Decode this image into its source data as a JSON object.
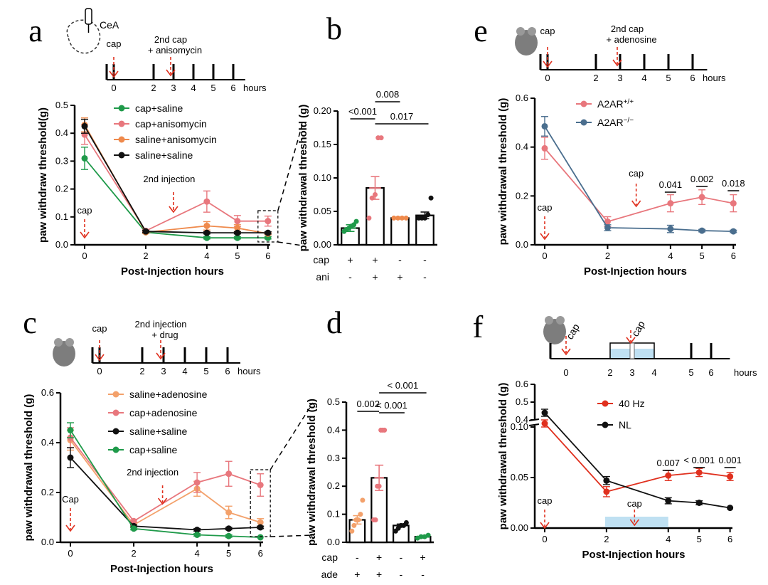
{
  "panels": [
    {
      "id": "a",
      "label": "a",
      "schematic": {
        "region": "CeA",
        "first": "cap",
        "second": "2nd cap",
        "second_line2": "+ anisomycin",
        "hours": [
          "0",
          "2",
          "3",
          "4",
          "5",
          "6"
        ],
        "unit": "hours"
      },
      "chart_data": {
        "type": "line",
        "xlabel": "Post-Injection hours",
        "ylabel": "paw withdraw threshold(g)",
        "ylim": [
          0,
          0.5
        ],
        "yticks": [
          "0.0",
          "0.1",
          "0.2",
          "0.3",
          "0.4",
          "0.5"
        ],
        "xticks": [
          "0",
          "2",
          "4",
          "5",
          "6"
        ],
        "x": [
          0,
          2,
          4,
          5,
          6
        ],
        "series": [
          {
            "name": "cap+saline",
            "color": "#1f9a4a",
            "values": [
              0.31,
              0.045,
              0.025,
              0.025,
              0.025
            ],
            "err": [
              0.04,
              0.004,
              0.004,
              0.004,
              0.004
            ]
          },
          {
            "name": "cap+anisomycin",
            "color": "#e8777d",
            "values": [
              0.395,
              0.05,
              0.155,
              0.085,
              0.085
            ],
            "err": [
              0.035,
              0.004,
              0.038,
              0.02,
              0.018
            ]
          },
          {
            "name": "saline+anisomycin",
            "color": "#ef8a4c",
            "values": [
              0.43,
              0.045,
              0.068,
              0.06,
              0.04
            ],
            "err": [
              0.025,
              0.004,
              0.015,
              0.012,
              0.004
            ]
          },
          {
            "name": "saline+saline",
            "color": "#111111",
            "values": [
              0.425,
              0.048,
              0.043,
              0.043,
              0.043
            ],
            "err": [
              0.025,
              0.004,
              0.004,
              0.004,
              0.004
            ]
          }
        ],
        "annotations": [
          "cap",
          "2nd injection"
        ]
      }
    },
    {
      "id": "b",
      "label": "b",
      "chart_data": {
        "type": "bar",
        "ylabel": "paw withdrawal threshold (g)",
        "ylim": [
          0,
          0.2
        ],
        "yticks": [
          "0.00",
          "0.05",
          "0.10",
          "0.15",
          "0.20"
        ],
        "bars": [
          {
            "value": 0.025,
            "err": 0.005,
            "color": "#1f9a4a",
            "points": [
              0.02,
              0.023,
              0.025,
              0.028,
              0.03,
              0.035
            ]
          },
          {
            "value": 0.085,
            "err": 0.017,
            "color": "#e8777d",
            "points": [
              0.04,
              0.07,
              0.075,
              0.16,
              0.16
            ]
          },
          {
            "value": 0.04,
            "err": 0.0,
            "color": "#ef8a4c",
            "points": [
              0.04,
              0.04,
              0.04,
              0.04
            ]
          },
          {
            "value": 0.044,
            "err": 0.005,
            "color": "#111111",
            "points": [
              0.04,
              0.04,
              0.04,
              0.045,
              0.07
            ]
          }
        ],
        "row_labels": [
          "cap",
          "ani"
        ],
        "rows": [
          [
            "+",
            "+",
            "-",
            "-"
          ],
          [
            "-",
            "+",
            "+",
            "-"
          ]
        ],
        "sig": [
          "<0.001",
          "0.008",
          "0.017"
        ]
      }
    },
    {
      "id": "c",
      "label": "c",
      "schematic": {
        "first": "cap",
        "second": "2nd injection",
        "second_line2": "+ drug",
        "hours": [
          "0",
          "2",
          "3",
          "4",
          "5",
          "6"
        ],
        "unit": "hours"
      },
      "chart_data": {
        "type": "line",
        "xlabel": "Post-Injection hours",
        "ylabel": "paw withdrawal threshold (g)",
        "ylim": [
          0,
          0.6
        ],
        "yticks": [
          "0.0",
          "0.2",
          "0.4",
          "0.6"
        ],
        "xticks": [
          "0",
          "2",
          "4",
          "5",
          "6"
        ],
        "x": [
          0,
          2,
          4,
          5,
          6
        ],
        "series": [
          {
            "name": "saline+adenosine",
            "color": "#f3a16b",
            "values": [
              0.41,
              0.07,
              0.215,
              0.12,
              0.08
            ],
            "err": [
              0.04,
              0.005,
              0.03,
              0.025,
              0.015
            ]
          },
          {
            "name": "cap+adenosine",
            "color": "#e8777d",
            "values": [
              0.42,
              0.085,
              0.24,
              0.275,
              0.23
            ],
            "err": [
              0.04,
              0.005,
              0.04,
              0.05,
              0.045
            ]
          },
          {
            "name": "saline+saline",
            "color": "#111111",
            "values": [
              0.34,
              0.065,
              0.05,
              0.055,
              0.06
            ],
            "err": [
              0.04,
              0.005,
              0.005,
              0.005,
              0.005
            ]
          },
          {
            "name": "cap+saline",
            "color": "#1f9a4a",
            "values": [
              0.45,
              0.055,
              0.03,
              0.025,
              0.02
            ],
            "err": [
              0.03,
              0.005,
              0.005,
              0.005,
              0.004
            ]
          }
        ],
        "annotations": [
          "Cap",
          "2nd injection"
        ]
      }
    },
    {
      "id": "d",
      "label": "d",
      "chart_data": {
        "type": "bar",
        "ylabel": "paw withdrawal threshold (g)",
        "ylim": [
          0,
          0.5
        ],
        "yticks": [
          "0.0",
          "0.1",
          "0.2",
          "0.3",
          "0.4",
          "0.5"
        ],
        "bars": [
          {
            "value": 0.08,
            "err": 0.015,
            "color": "#f3a16b",
            "points": [
              0.04,
              0.06,
              0.08,
              0.08,
              0.1,
              0.15
            ]
          },
          {
            "value": 0.23,
            "err": 0.045,
            "color": "#e8777d",
            "points": [
              0.08,
              0.08,
              0.2,
              0.2,
              0.4,
              0.4,
              0.4
            ]
          },
          {
            "value": 0.06,
            "err": 0.005,
            "color": "#111111",
            "points": [
              0.04,
              0.05,
              0.06,
              0.06,
              0.07
            ]
          },
          {
            "value": 0.02,
            "err": 0.002,
            "color": "#1f9a4a",
            "points": [
              0.015,
              0.02,
              0.02,
              0.025
            ]
          }
        ],
        "row_labels": [
          "cap",
          "ade"
        ],
        "rows": [
          [
            "-",
            "+",
            "-",
            "+"
          ],
          [
            "+",
            "+",
            "-",
            "-"
          ]
        ],
        "sig": [
          "0.002",
          "< 0.001",
          "< 0.001"
        ]
      }
    },
    {
      "id": "e",
      "label": "e",
      "schematic": {
        "first": "cap",
        "second": "2nd cap",
        "second_line2": "+ adenosine",
        "hours": [
          "0",
          "2",
          "3",
          "4",
          "5",
          "6"
        ],
        "unit": "hours"
      },
      "chart_data": {
        "type": "line",
        "xlabel": "Post-Injection hours",
        "ylabel": "paw withdrawal threshold (g)",
        "ylim": [
          0,
          0.6
        ],
        "yticks": [
          "0.0",
          "0.2",
          "0.4",
          "0.6"
        ],
        "xticks": [
          "0",
          "2",
          "4",
          "5",
          "6"
        ],
        "x": [
          0,
          2,
          4,
          5,
          6
        ],
        "series": [
          {
            "name": "A2AR",
            "sup": "+/+",
            "color": "#e8777d",
            "values": [
              0.395,
              0.095,
              0.17,
              0.195,
              0.17
            ],
            "err": [
              0.045,
              0.02,
              0.035,
              0.03,
              0.035
            ]
          },
          {
            "name": "A2AR",
            "sup": "−/−",
            "color": "#4a6e8e",
            "values": [
              0.485,
              0.07,
              0.065,
              0.058,
              0.055
            ],
            "err": [
              0.04,
              0.012,
              0.015,
              0.005,
              0.005
            ]
          }
        ],
        "sig": [
          "0.041",
          "0.002",
          "0.018"
        ],
        "annotations": [
          "cap",
          "cap"
        ]
      }
    },
    {
      "id": "f",
      "label": "f",
      "schematic": {
        "first": "cap",
        "second": "cap",
        "hours": [
          "0",
          "2",
          "3",
          "4",
          "5",
          "6"
        ],
        "unit": "hours",
        "stim_color": "#bfe0f2"
      },
      "chart_data": {
        "type": "line",
        "xlabel": "Post-Injection hours",
        "ylabel": "paw withdrawal threshold (g)",
        "ylim_lower": [
          0,
          0.1
        ],
        "ylim_upper": [
          0.4,
          0.6
        ],
        "yticks_lower": [
          "0.00",
          "0.05",
          "0.10"
        ],
        "yticks_upper": [
          "0.4",
          "0.5",
          "0.6"
        ],
        "xticks": [
          "0",
          "2",
          "4",
          "5",
          "6"
        ],
        "x": [
          0,
          2,
          4,
          5,
          6
        ],
        "series": [
          {
            "name": "40 Hz",
            "color": "#e0301e",
            "values": [
              0.38,
              0.036,
              0.052,
              0.055,
              0.051
            ],
            "err": [
              0.02,
              0.005,
              0.005,
              0.004,
              0.004
            ]
          },
          {
            "name": "NL",
            "color": "#111111",
            "values": [
              0.44,
              0.047,
              0.027,
              0.025,
              0.02
            ],
            "err": [
              0.02,
              0.004,
              0.003,
              0.002,
              0.001
            ]
          }
        ],
        "sig": [
          "0.007",
          "< 0.001",
          "0.001"
        ],
        "annotations": [
          "cap",
          "cap"
        ]
      }
    }
  ]
}
